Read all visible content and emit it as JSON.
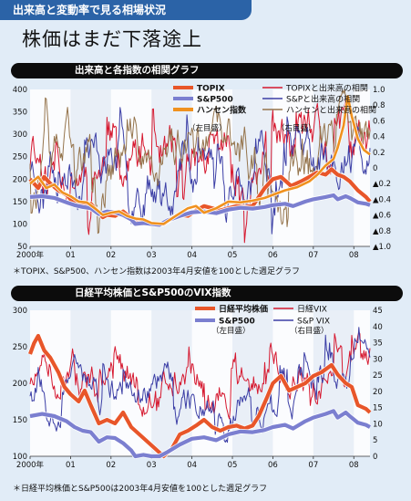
{
  "header": {
    "tag": "出来高と変動率で見る相場状況",
    "title": "株価はまだ下落途上"
  },
  "chart1": {
    "section_title": "出来高と各指数の相関グラフ",
    "note": "＊TOPIX、S&P500、ハンセン指数は2003年4月安値を100とした週足グラフ"
  },
  "chart2": {
    "section_title": "日経平均株価とS&P500のVIX指数",
    "note": "＊日経平均株価とS&P500は2003年4月安値を100とした週足グラフ"
  },
  "colors": {
    "topix": "#e8562a",
    "sp500": "#7b7fd0",
    "hangseng": "#f0911e",
    "corr_topix": "#d6182f",
    "corr_sp": "#3c3fa6",
    "corr_hs": "#95744c",
    "nikkei": "#e8562a",
    "nikkei_vix": "#d6182f",
    "sp_vix": "#3c3fa6",
    "band": "#ffffff",
    "bg": "#e1ecf7"
  },
  "chart_data": [
    {
      "type": "line",
      "title": "出来高と各指数の相関グラフ",
      "x_ticks": [
        "2000年",
        "01",
        "02",
        "03",
        "04",
        "05",
        "06",
        "07",
        "08"
      ],
      "x_range": [
        2000.0,
        2008.4
      ],
      "y_left": {
        "ticks": [
          50,
          100,
          150,
          200,
          250,
          300,
          350,
          400
        ],
        "range": [
          50,
          400
        ]
      },
      "y_right": {
        "ticks": [
          "1.0",
          "0.8",
          "0.6",
          "0.4",
          "0.2",
          "0",
          "▲0.2",
          "▲0.4",
          "▲0.6",
          "▲0.8",
          "▲1.0"
        ],
        "range": [
          -1,
          1
        ]
      },
      "axis_notes": {
        "left": "（左目盛）",
        "right": "（右目盛）"
      },
      "series": [
        {
          "name": "TOPIX",
          "axis": "left",
          "color": "#e8562a",
          "width": 4.2,
          "points": [
            [
              2000.0,
              200
            ],
            [
              2000.2,
              180
            ],
            [
              2000.35,
              205
            ],
            [
              2000.5,
              190
            ],
            [
              2000.7,
              175
            ],
            [
              2000.9,
              165
            ],
            [
              2001.0,
              155
            ],
            [
              2001.2,
              150
            ],
            [
              2001.35,
              140
            ],
            [
              2001.5,
              145
            ],
            [
              2001.7,
              125
            ],
            [
              2001.8,
              115
            ],
            [
              2001.9,
              120
            ],
            [
              2002.1,
              118
            ],
            [
              2002.3,
              128
            ],
            [
              2002.5,
              112
            ],
            [
              2002.7,
              108
            ],
            [
              2002.9,
              105
            ],
            [
              2003.1,
              98
            ],
            [
              2003.3,
              100
            ],
            [
              2003.5,
              112
            ],
            [
              2003.7,
              120
            ],
            [
              2003.9,
              118
            ],
            [
              2004.1,
              130
            ],
            [
              2004.3,
              140
            ],
            [
              2004.5,
              135
            ],
            [
              2004.7,
              130
            ],
            [
              2004.9,
              135
            ],
            [
              2005.1,
              140
            ],
            [
              2005.3,
              138
            ],
            [
              2005.5,
              140
            ],
            [
              2005.65,
              160
            ],
            [
              2005.8,
              180
            ],
            [
              2006.0,
              200
            ],
            [
              2006.2,
              205
            ],
            [
              2006.45,
              185
            ],
            [
              2006.7,
              195
            ],
            [
              2006.9,
              205
            ],
            [
              2007.1,
              215
            ],
            [
              2007.3,
              210
            ],
            [
              2007.45,
              222
            ],
            [
              2007.6,
              210
            ],
            [
              2007.75,
              205
            ],
            [
              2007.9,
              195
            ],
            [
              2008.1,
              175
            ],
            [
              2008.3,
              160
            ],
            [
              2008.4,
              150
            ]
          ]
        },
        {
          "name": "S&P500",
          "axis": "left",
          "color": "#7b7fd0",
          "width": 4.2,
          "points": [
            [
              2000.0,
              160
            ],
            [
              2000.3,
              162
            ],
            [
              2000.6,
              158
            ],
            [
              2000.9,
              148
            ],
            [
              2001.1,
              142
            ],
            [
              2001.3,
              138
            ],
            [
              2001.5,
              135
            ],
            [
              2001.7,
              122
            ],
            [
              2001.9,
              128
            ],
            [
              2002.1,
              126
            ],
            [
              2002.3,
              120
            ],
            [
              2002.5,
              110
            ],
            [
              2002.6,
              100
            ],
            [
              2002.8,
              102
            ],
            [
              2003.0,
              100
            ],
            [
              2003.2,
              98
            ],
            [
              2003.4,
              108
            ],
            [
              2003.7,
              118
            ],
            [
              2004.0,
              126
            ],
            [
              2004.3,
              128
            ],
            [
              2004.6,
              124
            ],
            [
              2004.9,
              132
            ],
            [
              2005.2,
              136
            ],
            [
              2005.5,
              134
            ],
            [
              2005.8,
              138
            ],
            [
              2006.0,
              142
            ],
            [
              2006.3,
              145
            ],
            [
              2006.5,
              140
            ],
            [
              2006.8,
              150
            ],
            [
              2007.0,
              155
            ],
            [
              2007.3,
              160
            ],
            [
              2007.5,
              164
            ],
            [
              2007.6,
              155
            ],
            [
              2007.8,
              162
            ],
            [
              2007.9,
              158
            ],
            [
              2008.1,
              148
            ],
            [
              2008.3,
              145
            ],
            [
              2008.4,
              142
            ]
          ]
        },
        {
          "name": "ハンセン指数",
          "axis": "left",
          "color": "#f0911e",
          "width": 2.6,
          "points": [
            [
              2000.0,
              190
            ],
            [
              2000.2,
              205
            ],
            [
              2000.4,
              180
            ],
            [
              2000.6,
              188
            ],
            [
              2000.8,
              170
            ],
            [
              2001.0,
              162
            ],
            [
              2001.2,
              150
            ],
            [
              2001.4,
              148
            ],
            [
              2001.6,
              135
            ],
            [
              2001.8,
              120
            ],
            [
              2002.0,
              125
            ],
            [
              2002.2,
              128
            ],
            [
              2002.4,
              118
            ],
            [
              2002.6,
              112
            ],
            [
              2002.8,
              110
            ],
            [
              2003.0,
              102
            ],
            [
              2003.3,
              100
            ],
            [
              2003.6,
              118
            ],
            [
              2003.9,
              135
            ],
            [
              2004.1,
              140
            ],
            [
              2004.3,
              125
            ],
            [
              2004.6,
              135
            ],
            [
              2004.9,
              150
            ],
            [
              2005.2,
              148
            ],
            [
              2005.5,
              152
            ],
            [
              2005.8,
              158
            ],
            [
              2006.0,
              165
            ],
            [
              2006.3,
              175
            ],
            [
              2006.6,
              182
            ],
            [
              2006.9,
              195
            ],
            [
              2007.1,
              210
            ],
            [
              2007.3,
              230
            ],
            [
              2007.5,
              245
            ],
            [
              2007.6,
              270
            ],
            [
              2007.75,
              320
            ],
            [
              2007.85,
              385
            ],
            [
              2007.95,
              340
            ],
            [
              2008.1,
              290
            ],
            [
              2008.25,
              265
            ],
            [
              2008.4,
              255
            ]
          ]
        },
        {
          "name": "TOPIXと出来高の相関",
          "axis": "right",
          "color": "#d6182f",
          "width": 1,
          "noise": {
            "seed": 11,
            "base": 0.1,
            "amp": 0.55
          }
        },
        {
          "name": "S&Pと出来高の相関",
          "axis": "right",
          "color": "#3c3fa6",
          "width": 1,
          "noise": {
            "seed": 23,
            "base": 0.05,
            "amp": 0.5
          }
        },
        {
          "name": "ハンセンと出来高の相関",
          "axis": "right",
          "color": "#95744c",
          "width": 1,
          "noise": {
            "seed": 37,
            "base": 0.15,
            "amp": 0.5
          }
        }
      ]
    },
    {
      "type": "line",
      "title": "日経平均株価とS&P500のVIX指数",
      "x_ticks": [
        "2000年",
        "01",
        "02",
        "03",
        "04",
        "05",
        "06",
        "07",
        "08"
      ],
      "x_range": [
        2000.0,
        2008.4
      ],
      "y_left": {
        "ticks": [
          100,
          150,
          200,
          250,
          300
        ],
        "range": [
          100,
          300
        ]
      },
      "y_right": {
        "ticks": [
          0,
          5,
          10,
          15,
          20,
          25,
          30,
          35,
          40,
          45
        ],
        "range": [
          0,
          45
        ]
      },
      "axis_notes": {
        "left": "（左目盛）",
        "right": "（右目盛）"
      },
      "series": [
        {
          "name": "日経平均株価",
          "axis": "left",
          "color": "#e8562a",
          "width": 4.2,
          "points": [
            [
              2000.0,
              240
            ],
            [
              2000.1,
              255
            ],
            [
              2000.2,
              265
            ],
            [
              2000.35,
              245
            ],
            [
              2000.5,
              235
            ],
            [
              2000.7,
              215
            ],
            [
              2000.85,
              195
            ],
            [
              2001.0,
              185
            ],
            [
              2001.2,
              175
            ],
            [
              2001.35,
              190
            ],
            [
              2001.5,
              170
            ],
            [
              2001.7,
              145
            ],
            [
              2001.9,
              150
            ],
            [
              2002.1,
              145
            ],
            [
              2002.3,
              160
            ],
            [
              2002.5,
              140
            ],
            [
              2002.7,
              130
            ],
            [
              2002.9,
              120
            ],
            [
              2003.1,
              110
            ],
            [
              2003.3,
              100
            ],
            [
              2003.5,
              110
            ],
            [
              2003.7,
              130
            ],
            [
              2003.9,
              135
            ],
            [
              2004.1,
              142
            ],
            [
              2004.3,
              150
            ],
            [
              2004.5,
              140
            ],
            [
              2004.7,
              135
            ],
            [
              2004.9,
              140
            ],
            [
              2005.1,
              142
            ],
            [
              2005.3,
              138
            ],
            [
              2005.5,
              142
            ],
            [
              2005.65,
              155
            ],
            [
              2005.85,
              180
            ],
            [
              2006.0,
              200
            ],
            [
              2006.2,
              210
            ],
            [
              2006.4,
              190
            ],
            [
              2006.6,
              195
            ],
            [
              2006.8,
              200
            ],
            [
              2007.0,
              210
            ],
            [
              2007.2,
              215
            ],
            [
              2007.45,
              225
            ],
            [
              2007.6,
              212
            ],
            [
              2007.8,
              200
            ],
            [
              2007.95,
              195
            ],
            [
              2008.1,
              170
            ],
            [
              2008.3,
              165
            ],
            [
              2008.4,
              160
            ]
          ]
        },
        {
          "name": "S&P500",
          "axis": "left",
          "color": "#7b7fd0",
          "width": 4.2,
          "points": [
            [
              2000.0,
              155
            ],
            [
              2000.3,
              158
            ],
            [
              2000.6,
              155
            ],
            [
              2000.9,
              148
            ],
            [
              2001.1,
              140
            ],
            [
              2001.3,
              135
            ],
            [
              2001.5,
              133
            ],
            [
              2001.7,
              120
            ],
            [
              2001.9,
              126
            ],
            [
              2002.1,
              125
            ],
            [
              2002.3,
              118
            ],
            [
              2002.5,
              108
            ],
            [
              2002.6,
              100
            ],
            [
              2002.8,
              102
            ],
            [
              2003.0,
              100
            ],
            [
              2003.2,
              98
            ],
            [
              2003.4,
              106
            ],
            [
              2003.7,
              116
            ],
            [
              2004.0,
              124
            ],
            [
              2004.3,
              126
            ],
            [
              2004.6,
              122
            ],
            [
              2004.9,
              130
            ],
            [
              2005.2,
              134
            ],
            [
              2005.5,
              133
            ],
            [
              2005.8,
              136
            ],
            [
              2006.0,
              140
            ],
            [
              2006.3,
              143
            ],
            [
              2006.5,
              138
            ],
            [
              2006.8,
              148
            ],
            [
              2007.0,
              153
            ],
            [
              2007.3,
              158
            ],
            [
              2007.5,
              162
            ],
            [
              2007.6,
              153
            ],
            [
              2007.8,
              160
            ],
            [
              2007.9,
              155
            ],
            [
              2008.1,
              146
            ],
            [
              2008.3,
              143
            ],
            [
              2008.4,
              140
            ]
          ]
        },
        {
          "name": "日経VIX",
          "axis": "right",
          "color": "#d6182f",
          "width": 1,
          "noise": {
            "seed": 51,
            "base": 24,
            "amp": 9
          }
        },
        {
          "name": "S&P VIX",
          "axis": "right",
          "color": "#3c3fa6",
          "width": 1,
          "noise": {
            "seed": 67,
            "base": 20,
            "amp": 8
          }
        }
      ]
    }
  ]
}
